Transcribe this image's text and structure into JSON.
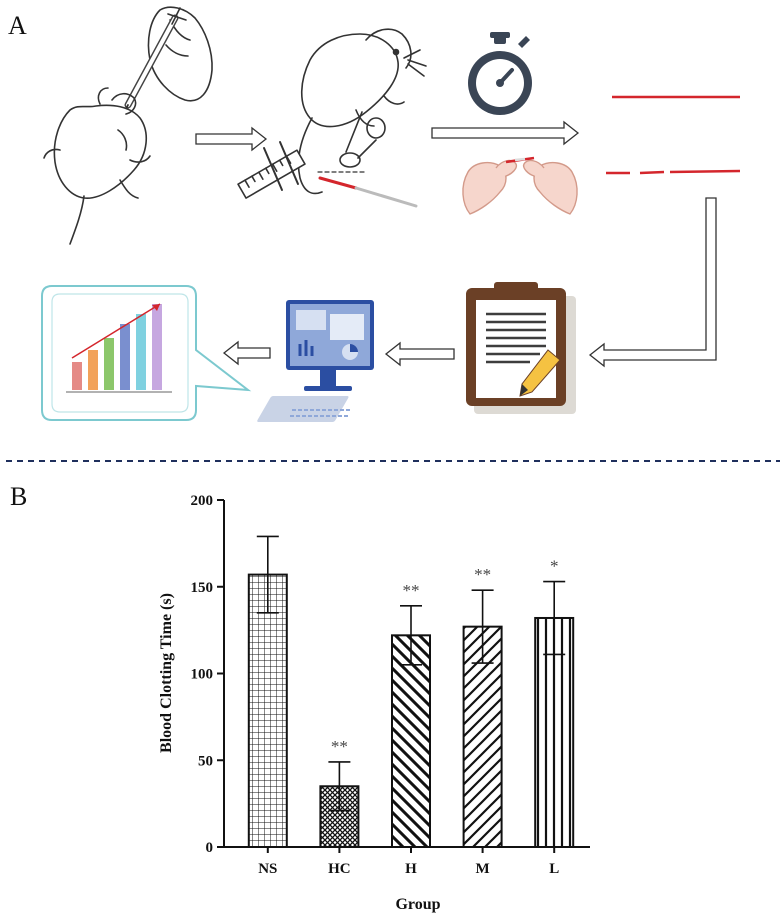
{
  "panels": {
    "a_label": "A",
    "b_label": "B"
  },
  "icons": {
    "injection": "mouse-injection-icon",
    "tail_cut": "mouse-tail-cut-icon",
    "stopwatch": "stopwatch-icon",
    "glass_tube": "glass-capillary-icon",
    "clipboard": "clipboard-record-icon",
    "computer": "computer-analysis-icon",
    "chart_bubble": "bar-chart-bubble-icon"
  },
  "colors": {
    "accent_red": "#d4262c",
    "divider": "#1f2f5c",
    "bubble_border": "#7cc9cf"
  },
  "chart_data": {
    "type": "bar",
    "categories": [
      "NS",
      "HC",
      "H",
      "M",
      "L"
    ],
    "values": [
      157,
      35,
      122,
      127,
      132
    ],
    "errors": [
      22,
      14,
      17,
      21,
      21
    ],
    "significance": [
      "",
      "**",
      "**",
      "**",
      "*"
    ],
    "patterns": [
      "grid",
      "crosshatch",
      "diag-back",
      "diag-forward",
      "vertical"
    ],
    "xlabel": "Group",
    "ylabel": "Blood Clotting Time (s)",
    "ylim": [
      0,
      200
    ],
    "yticks": [
      0,
      50,
      100,
      150,
      200
    ]
  }
}
